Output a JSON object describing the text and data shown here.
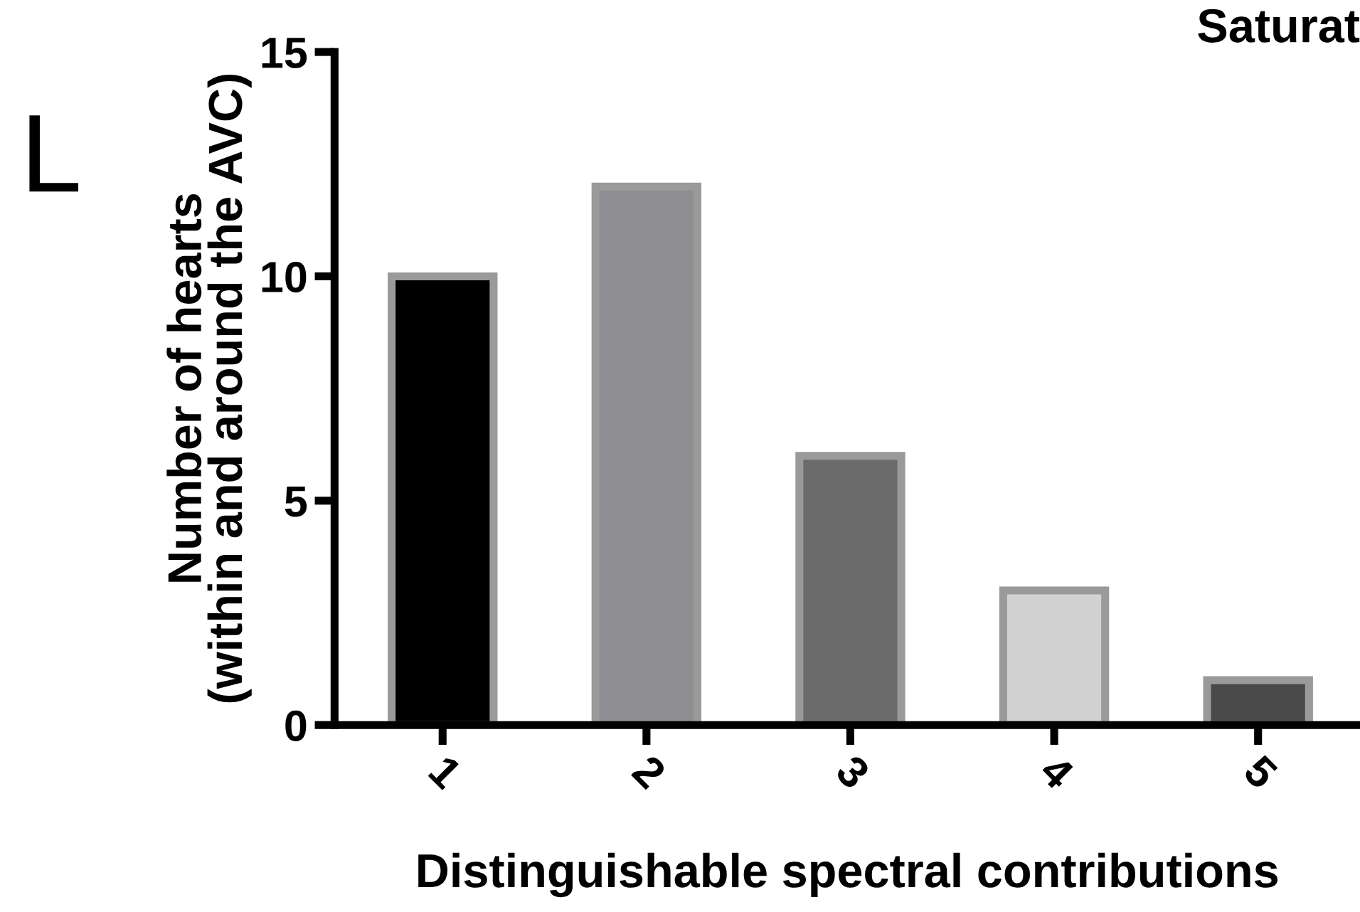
{
  "chart_data": {
    "type": "bar",
    "title": "Saturat",
    "xlabel": "Distinguishable spectral contributions",
    "ylabel": "Number of hearts\n(within and around the AVC)",
    "categories": [
      "1",
      "2",
      "3",
      "4",
      "5"
    ],
    "values": [
      10,
      12,
      6,
      3,
      1
    ],
    "colors": [
      "#000000",
      "#8e8e92",
      "#6b6b6b",
      "#d2d2d2",
      "#4a4a4a"
    ],
    "ylim": [
      0,
      15
    ],
    "yticks": [
      0,
      5,
      10,
      15
    ],
    "grid": false,
    "annotations": [
      "L"
    ]
  }
}
